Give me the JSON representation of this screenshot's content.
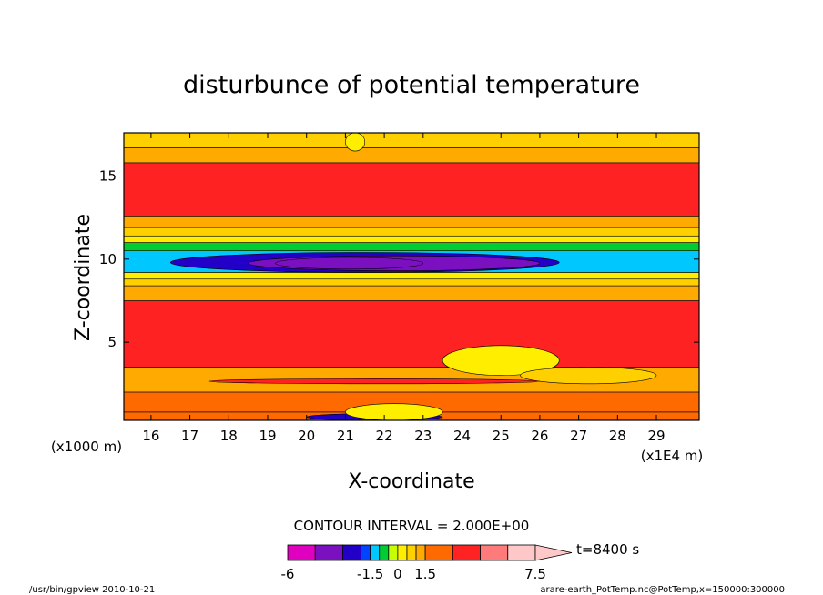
{
  "chart_data": {
    "type": "heatmap",
    "title": "disturbunce of potential temperature",
    "xlabel": "X-coordinate",
    "ylabel": "Z-coordinate",
    "x_unit_left": "(x1000 m)",
    "x_unit_right": "(x1E4 m)",
    "xlim": [
      15.3,
      30.1
    ],
    "ylim": [
      0.3,
      17.6
    ],
    "x_ticks": [
      "16",
      "17",
      "18",
      "19",
      "20",
      "21",
      "22",
      "23",
      "24",
      "25",
      "26",
      "27",
      "28",
      "29"
    ],
    "y_ticks": [
      "5",
      "10",
      "15"
    ],
    "contour_interval_text": "CONTOUR INTERVAL = 2.000E+00",
    "colorbar": {
      "labels": [
        "-6",
        "-1.5",
        "0",
        "1.5",
        "7.5"
      ],
      "levels": [
        -6,
        -4.5,
        -3,
        -2,
        -1.5,
        -1,
        -0.5,
        0,
        0.5,
        1,
        1.5,
        3,
        4.5,
        6,
        7.5
      ],
      "colors": [
        "#e000c0",
        "#7a10c0",
        "#2200c8",
        "#0044ff",
        "#00c8ff",
        "#00cc33",
        "#c8ff00",
        "#ffee00",
        "#ffd000",
        "#ffaa00",
        "#ff6a00",
        "#ff2222",
        "#ff7a7a",
        "#ffc8c8"
      ],
      "extend_color": "#ffc8c8"
    },
    "time_label": "t=8400 s",
    "footer_left": "/usr/bin/gpview   2010-10-21",
    "footer_right": "arare-earth_PotTemp.nc@PotTemp,x=150000:300000",
    "layers": [
      {
        "z": [
          0.3,
          0.8
        ],
        "value": 2.5
      },
      {
        "z": [
          0.8,
          2.0
        ],
        "value": 1.5
      },
      {
        "z": [
          2.0,
          3.5
        ],
        "value": 1.2
      },
      {
        "z": [
          3.5,
          7.5
        ],
        "value": 4.0
      },
      {
        "z": [
          7.5,
          8.4
        ],
        "value": 1.3
      },
      {
        "z": [
          8.4,
          8.8
        ],
        "value": 0.7
      },
      {
        "z": [
          8.8,
          9.2
        ],
        "value": 0.3
      },
      {
        "z": [
          9.2,
          10.5
        ],
        "value": -1.2
      },
      {
        "z": [
          10.5,
          11.0
        ],
        "value": -0.8
      },
      {
        "z": [
          11.0,
          11.4
        ],
        "value": 0.2
      },
      {
        "z": [
          11.4,
          11.9
        ],
        "value": 0.6
      },
      {
        "z": [
          11.9,
          12.6
        ],
        "value": 1.2
      },
      {
        "z": [
          12.6,
          15.8
        ],
        "value": 4.0
      },
      {
        "z": [
          15.8,
          16.7
        ],
        "value": 1.2
      },
      {
        "z": [
          16.7,
          17.6
        ],
        "value": 0.6
      }
    ],
    "features": [
      {
        "x": [
          16.5,
          26.5
        ],
        "z": [
          9.2,
          10.4
        ],
        "value": -2.2
      },
      {
        "x": [
          18.5,
          26.0
        ],
        "z": [
          9.3,
          10.2
        ],
        "value": -3.5
      },
      {
        "x": [
          19.2,
          23.0
        ],
        "z": [
          9.4,
          10.1
        ],
        "value": -4.0
      },
      {
        "x": [
          23.5,
          26.5
        ],
        "z": [
          3.0,
          4.8
        ],
        "value": 0.2
      },
      {
        "x": [
          25.5,
          29.0
        ],
        "z": [
          2.5,
          3.5
        ],
        "value": 0.6
      },
      {
        "x": [
          20.0,
          23.5
        ],
        "z": [
          0.3,
          0.7
        ],
        "value": -3.0
      },
      {
        "x": [
          21.0,
          23.5
        ],
        "z": [
          0.3,
          1.3
        ],
        "value": 0.3
      },
      {
        "x": [
          21.0,
          21.5
        ],
        "z": [
          16.5,
          17.6
        ],
        "value": 0.3
      },
      {
        "x": [
          17.5,
          26.0
        ],
        "z": [
          2.5,
          2.8
        ],
        "value": 3.0
      }
    ]
  }
}
